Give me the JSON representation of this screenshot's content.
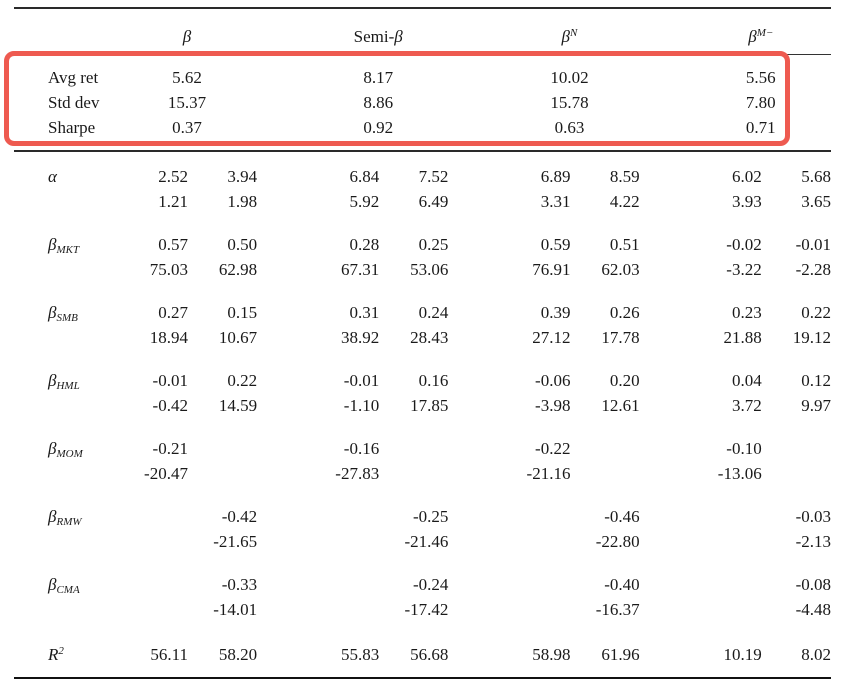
{
  "page": {
    "background": "#ffffff"
  },
  "annotation": {
    "highlight_color": "#ee5a50"
  },
  "header": {
    "groups": [
      {
        "prefix": "",
        "beta": "β",
        "sup": ""
      },
      {
        "prefix": "Semi-",
        "beta": "β",
        "sup": ""
      },
      {
        "prefix": "",
        "beta": "β",
        "sup": "N"
      },
      {
        "prefix": "",
        "beta": "β",
        "sup": "M−"
      }
    ]
  },
  "summary": {
    "rows": [
      {
        "label": "Avg ret",
        "values": [
          "5.62",
          "8.17",
          "10.02",
          "5.56"
        ]
      },
      {
        "label": "Std dev",
        "values": [
          "15.37",
          "8.86",
          "15.78",
          "7.80"
        ]
      },
      {
        "label": "Sharpe",
        "values": [
          "0.37",
          "0.92",
          "0.63",
          "0.71"
        ]
      }
    ]
  },
  "stats": {
    "rows": [
      {
        "label": {
          "base": "α",
          "sub": "",
          "sup": ""
        },
        "coef": [
          "2.52",
          "3.94",
          "6.84",
          "7.52",
          "6.89",
          "8.59",
          "6.02",
          "5.68"
        ],
        "tstat": [
          "1.21",
          "1.98",
          "5.92",
          "6.49",
          "3.31",
          "4.22",
          "3.93",
          "3.65"
        ]
      },
      {
        "label": {
          "base": "β",
          "sub": "MKT",
          "sup": ""
        },
        "coef": [
          "0.57",
          "0.50",
          "0.28",
          "0.25",
          "0.59",
          "0.51",
          "-0.02",
          "-0.01"
        ],
        "tstat": [
          "75.03",
          "62.98",
          "67.31",
          "53.06",
          "76.91",
          "62.03",
          "-3.22",
          "-2.28"
        ]
      },
      {
        "label": {
          "base": "β",
          "sub": "SMB",
          "sup": ""
        },
        "coef": [
          "0.27",
          "0.15",
          "0.31",
          "0.24",
          "0.39",
          "0.26",
          "0.23",
          "0.22"
        ],
        "tstat": [
          "18.94",
          "10.67",
          "38.92",
          "28.43",
          "27.12",
          "17.78",
          "21.88",
          "19.12"
        ]
      },
      {
        "label": {
          "base": "β",
          "sub": "HML",
          "sup": ""
        },
        "coef": [
          "-0.01",
          "0.22",
          "-0.01",
          "0.16",
          "-0.06",
          "0.20",
          "0.04",
          "0.12"
        ],
        "tstat": [
          "-0.42",
          "14.59",
          "-1.10",
          "17.85",
          "-3.98",
          "12.61",
          "3.72",
          "9.97"
        ]
      },
      {
        "label": {
          "base": "β",
          "sub": "MOM",
          "sup": ""
        },
        "coef": [
          "-0.21",
          "",
          "-0.16",
          "",
          "-0.22",
          "",
          "-0.10",
          ""
        ],
        "tstat": [
          "-20.47",
          "",
          "-27.83",
          "",
          "-21.16",
          "",
          "-13.06",
          ""
        ]
      },
      {
        "label": {
          "base": "β",
          "sub": "RMW",
          "sup": ""
        },
        "coef": [
          "",
          "-0.42",
          "",
          "-0.25",
          "",
          "-0.46",
          "",
          "-0.03"
        ],
        "tstat": [
          "",
          "-21.65",
          "",
          "-21.46",
          "",
          "-22.80",
          "",
          "-2.13"
        ]
      },
      {
        "label": {
          "base": "β",
          "sub": "CMA",
          "sup": ""
        },
        "coef": [
          "",
          "-0.33",
          "",
          "-0.24",
          "",
          "-0.40",
          "",
          "-0.08"
        ],
        "tstat": [
          "",
          "-14.01",
          "",
          "-17.42",
          "",
          "-16.37",
          "",
          "-4.48"
        ]
      }
    ]
  },
  "r2": {
    "label": {
      "base": "R",
      "sub": "",
      "sup": "2"
    },
    "values": [
      "56.11",
      "58.20",
      "55.83",
      "56.68",
      "58.98",
      "61.96",
      "10.19",
      "8.02"
    ]
  }
}
